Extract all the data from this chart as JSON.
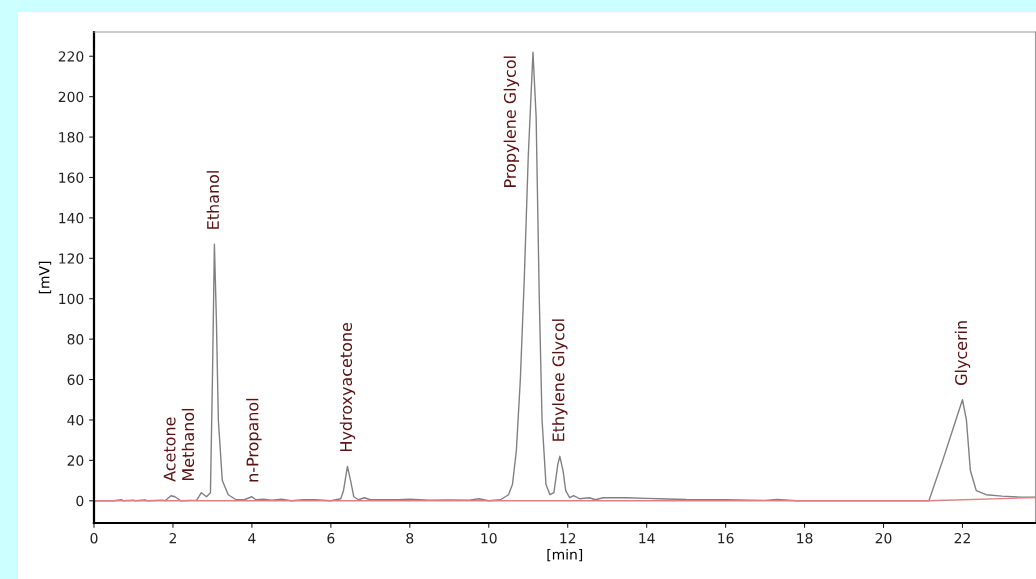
{
  "chart_data": {
    "type": "line",
    "xlabel": "[min]",
    "ylabel": "[mV]",
    "xlim": [
      0,
      23.85
    ],
    "ylim": [
      -11,
      232
    ],
    "xticks": [
      0,
      2,
      4,
      6,
      8,
      10,
      12,
      14,
      16,
      18,
      20,
      22
    ],
    "yticks": [
      0,
      20,
      40,
      60,
      80,
      100,
      120,
      140,
      160,
      180,
      200,
      220
    ],
    "grid": false,
    "legend": false,
    "marker": "none",
    "line_style": "solid",
    "series": [
      {
        "color": "#808080",
        "x": [
          0.0,
          0.5,
          0.7,
          0.75,
          1.0,
          1.05,
          1.3,
          1.35,
          1.75,
          1.8,
          1.95,
          2.05,
          2.2,
          2.6,
          2.72,
          2.85,
          2.95,
          3.0,
          3.05,
          3.1,
          3.15,
          3.25,
          3.4,
          3.6,
          3.8,
          4.0,
          4.1,
          4.3,
          4.5,
          4.75,
          5.0,
          5.3,
          5.6,
          6.0,
          6.25,
          6.32,
          6.42,
          6.5,
          6.58,
          6.7,
          6.85,
          7.0,
          7.3,
          7.7,
          8.0,
          8.5,
          9.0,
          9.5,
          9.75,
          10.0,
          10.3,
          10.5,
          10.6,
          10.7,
          10.8,
          10.9,
          11.0,
          11.12,
          11.2,
          11.28,
          11.35,
          11.45,
          11.55,
          11.65,
          11.75,
          11.8,
          11.88,
          11.95,
          12.05,
          12.15,
          12.3,
          12.55,
          12.7,
          12.9,
          13.1,
          13.5,
          14.0,
          14.3,
          15.0,
          16.0,
          17.0,
          17.3,
          17.8,
          21.15,
          21.5,
          21.8,
          22.0,
          22.1,
          22.2,
          22.35,
          22.6,
          23.0,
          23.5,
          23.85
        ],
        "values": [
          0,
          0,
          0.5,
          0,
          0.3,
          0,
          0.4,
          0,
          0.3,
          0,
          2.5,
          2,
          0,
          0.3,
          4,
          2,
          4,
          60,
          127,
          90,
          40,
          10,
          3,
          0.5,
          0.5,
          2,
          0.5,
          0.8,
          0.3,
          0.8,
          0,
          0.5,
          0.5,
          0,
          1,
          5,
          17,
          10,
          2,
          0.5,
          1.5,
          0.5,
          0.5,
          0.5,
          0.8,
          0.3,
          0.4,
          0.3,
          1,
          0,
          0.5,
          3,
          8,
          25,
          60,
          110,
          170,
          222,
          190,
          100,
          40,
          8,
          3,
          4,
          18,
          22,
          15,
          5,
          1.5,
          2.5,
          1,
          1.5,
          0.5,
          1.5,
          1.5,
          1.5,
          1.2,
          1,
          0.6,
          0.5,
          0.2,
          0.6,
          0,
          0,
          20,
          38,
          50,
          40,
          15,
          5,
          3,
          2.3,
          1.8,
          1.8
        ]
      },
      {
        "color": "#e08080",
        "x": [
          0,
          21.15,
          23.85
        ],
        "values": [
          0,
          0,
          1.6
        ]
      }
    ],
    "annotations": [
      {
        "text": "Acetone",
        "x": 1.95,
        "y": 2.5
      },
      {
        "text": "Methanol",
        "x": 2.72,
        "y": 4
      },
      {
        "text": "Ethanol",
        "x": 3.05,
        "y": 127
      },
      {
        "text": "n-Propanol",
        "x": 4.05,
        "y": 2
      },
      {
        "text": "Hydroxyacetone",
        "x": 6.42,
        "y": 17
      },
      {
        "text": "Propylene Glycol",
        "x": 11.12,
        "y": 222
      },
      {
        "text": "Ethylene Glycol",
        "x": 11.8,
        "y": 22
      },
      {
        "text": "Glycerin",
        "x": 22.0,
        "y": 50
      }
    ]
  }
}
